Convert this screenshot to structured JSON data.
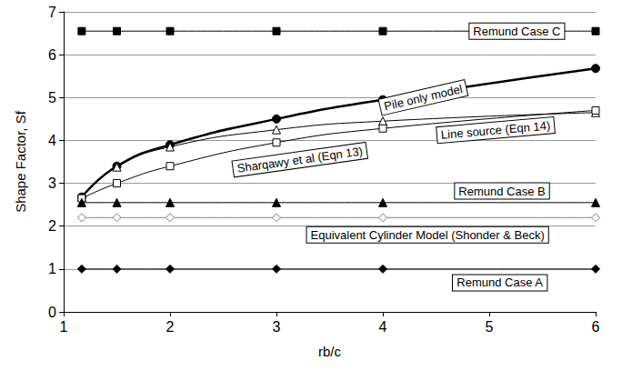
{
  "chart_data": {
    "type": "line",
    "xlabel": "rb/c",
    "ylabel": "Shape Factor, Sf",
    "x": [
      1.17,
      1.5,
      2,
      3,
      4,
      6
    ],
    "xlim": [
      1,
      6
    ],
    "xticks": [
      1,
      2,
      3,
      4,
      5,
      6
    ],
    "ylim": [
      0,
      7
    ],
    "yticks": [
      0,
      1,
      2,
      3,
      4,
      5,
      6,
      7
    ],
    "grid": true,
    "series": [
      {
        "name": "Remund Case C",
        "color": "#000000",
        "marker": "square",
        "line_style": "solid",
        "values": [
          6.55,
          6.55,
          6.55,
          6.55,
          6.55,
          6.55
        ]
      },
      {
        "name": "Pile only model",
        "color": "#000000",
        "marker": "circle",
        "line_style": "thick",
        "values": [
          2.68,
          3.4,
          3.9,
          4.5,
          4.95,
          5.68
        ]
      },
      {
        "name": "Line source (Eqn 14)",
        "color": "#000000",
        "marker": "triangle_open",
        "line_style": "solid",
        "values": [
          2.68,
          3.38,
          3.85,
          4.25,
          4.45,
          4.65
        ]
      },
      {
        "name": "Sharqawy et al (Eqn 13)",
        "color": "#000000",
        "marker": "square_open",
        "line_style": "solid",
        "values": [
          2.65,
          3.0,
          3.4,
          3.95,
          4.28,
          4.7
        ]
      },
      {
        "name": "Remund Case B",
        "color": "#000000",
        "marker": "triangle",
        "line_style": "solid",
        "values": [
          2.55,
          2.55,
          2.55,
          2.55,
          2.55,
          2.55
        ]
      },
      {
        "name": "Equivalent Cylinder Model (Shonder & Beck)",
        "color": "#808080",
        "marker": "diamond_open",
        "line_style": "solid",
        "values": [
          2.2,
          2.2,
          2.2,
          2.2,
          2.2,
          2.2
        ]
      },
      {
        "name": "Remund Case A",
        "color": "#000000",
        "marker": "diamond",
        "line_style": "solid",
        "values": [
          1.0,
          1.0,
          1.0,
          1.0,
          1.0,
          1.0
        ]
      }
    ]
  }
}
